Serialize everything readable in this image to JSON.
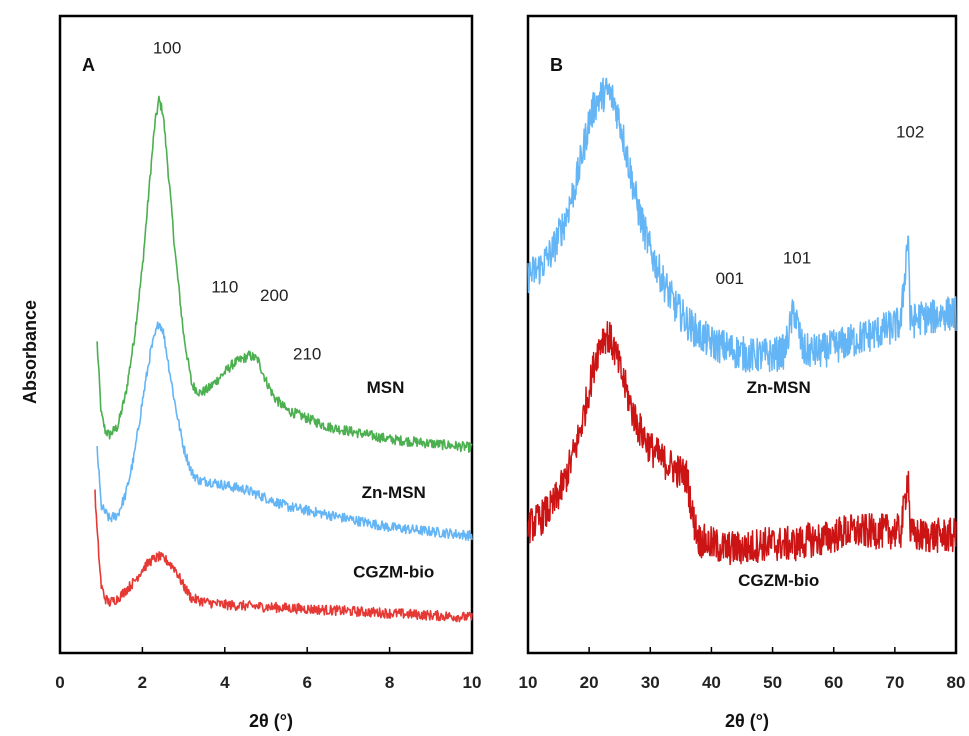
{
  "ylabel": "Absorbance",
  "chart_data": [
    {
      "id": "A",
      "type": "line",
      "panel_label": "A",
      "xlabel": "2θ (°)",
      "ylabel": "Absorbance",
      "xlim": [
        0,
        10
      ],
      "xticks": [
        "0",
        "2",
        "4",
        "6",
        "8",
        "10"
      ],
      "grid": false,
      "series": [
        {
          "name": "MSN",
          "color": "#4caf50",
          "x": [
            0.9,
            1.0,
            1.1,
            1.2,
            1.4,
            1.6,
            1.8,
            2.0,
            2.2,
            2.3,
            2.4,
            2.5,
            2.6,
            2.8,
            3.0,
            3.2,
            3.4,
            3.6,
            3.8,
            4.0,
            4.2,
            4.4,
            4.6,
            4.8,
            5.0,
            5.2,
            5.5,
            6.0,
            6.5,
            7.0,
            8.0,
            9.0,
            10.0
          ],
          "y": [
            7.4,
            5.7,
            5.3,
            5.2,
            5.4,
            6.2,
            7.5,
            9.2,
            11.5,
            12.6,
            13.2,
            12.9,
            11.8,
            9.5,
            7.6,
            6.4,
            6.2,
            6.3,
            6.5,
            6.7,
            6.9,
            7.0,
            7.1,
            7.0,
            6.5,
            6.1,
            5.8,
            5.6,
            5.4,
            5.3,
            5.1,
            5.0,
            4.9
          ]
        },
        {
          "name": "Zn-MSN",
          "color": "#64b5f6",
          "x": [
            0.9,
            1.0,
            1.2,
            1.4,
            1.6,
            1.8,
            2.0,
            2.2,
            2.4,
            2.5,
            2.6,
            2.8,
            3.0,
            3.2,
            3.4,
            3.6,
            4.0,
            4.5,
            5.0,
            5.5,
            6.0,
            7.0,
            8.0,
            9.0,
            10.0
          ],
          "y": [
            4.9,
            3.5,
            3.2,
            3.3,
            3.8,
            4.7,
            6.0,
            7.2,
            7.9,
            7.7,
            7.1,
            5.9,
            4.9,
            4.3,
            4.1,
            4.1,
            4.0,
            3.9,
            3.7,
            3.5,
            3.4,
            3.2,
            3.0,
            2.9,
            2.8
          ]
        },
        {
          "name": "CGZM-bio",
          "color": "#e53935",
          "x": [
            0.85,
            0.9,
            1.0,
            1.1,
            1.2,
            1.4,
            1.6,
            1.8,
            2.0,
            2.2,
            2.4,
            2.6,
            2.8,
            3.0,
            3.2,
            3.6,
            4.0,
            5.0,
            6.0,
            7.0,
            8.0,
            9.0,
            10.0
          ],
          "y": [
            3.8,
            2.9,
            1.6,
            1.3,
            1.2,
            1.3,
            1.5,
            1.7,
            2.0,
            2.2,
            2.3,
            2.2,
            2.0,
            1.6,
            1.3,
            1.2,
            1.15,
            1.1,
            1.05,
            1.0,
            0.95,
            0.9,
            0.85
          ]
        }
      ],
      "peak_labels": [
        {
          "text": "100",
          "x": 2.6,
          "y": 14.3
        },
        {
          "text": "110",
          "x": 4.0,
          "y": 8.6
        },
        {
          "text": "200",
          "x": 5.2,
          "y": 8.4
        },
        {
          "text": "210",
          "x": 6.0,
          "y": 7.0
        }
      ],
      "series_labels": [
        {
          "text": "MSN",
          "x": 7.9,
          "y": 6.2
        },
        {
          "text": "Zn-MSN",
          "x": 8.1,
          "y": 3.7
        },
        {
          "text": "CGZM-bio",
          "x": 8.1,
          "y": 1.8
        }
      ]
    },
    {
      "id": "B",
      "type": "line",
      "panel_label": "B",
      "xlabel": "2θ (°)",
      "xlim": [
        10,
        80
      ],
      "xticks": [
        "10",
        "20",
        "30",
        "40",
        "50",
        "60",
        "70",
        "80"
      ],
      "grid": false,
      "series": [
        {
          "name": "Zn-MSN",
          "color": "#64b5f6",
          "x": [
            10,
            12,
            14,
            16,
            18,
            19,
            20,
            21,
            22,
            23,
            24,
            25,
            26,
            27,
            28,
            30,
            32,
            34,
            36,
            38,
            40,
            42,
            44,
            46,
            48,
            50,
            52,
            53.5,
            55,
            58,
            60,
            62,
            64,
            66,
            68,
            70,
            71,
            72.2,
            72.5,
            72.8,
            74,
            76,
            78,
            80
          ],
          "y": [
            9.0,
            9.2,
            9.6,
            10.3,
            11.3,
            12.0,
            12.7,
            13.1,
            13.3,
            13.4,
            13.2,
            12.7,
            12.0,
            11.3,
            10.6,
            9.6,
            8.9,
            8.3,
            7.9,
            7.6,
            7.4,
            7.3,
            7.2,
            7.1,
            7.1,
            7.1,
            7.2,
            8.2,
            7.2,
            7.2,
            7.3,
            7.4,
            7.5,
            7.6,
            7.7,
            7.8,
            7.9,
            10.1,
            7.9,
            7.9,
            8.0,
            8.0,
            8.1,
            8.1
          ]
        },
        {
          "name": "CGZM-bio",
          "color": "#cc1414",
          "x": [
            10,
            12,
            14,
            16,
            18,
            19,
            20,
            21,
            22,
            23,
            24,
            25,
            26,
            27,
            28,
            30,
            32,
            34,
            36,
            37,
            38,
            40,
            42,
            44,
            46,
            48,
            50,
            52,
            54,
            56,
            58,
            60,
            62,
            64,
            66,
            68,
            70,
            71,
            72.2,
            72.5,
            72.8,
            74,
            76,
            78,
            80
          ],
          "y": [
            3.0,
            3.2,
            3.5,
            4.1,
            5.0,
            5.6,
            6.3,
            7.0,
            7.5,
            7.6,
            7.3,
            6.8,
            6.3,
            5.8,
            5.4,
            4.9,
            4.6,
            4.4,
            4.2,
            3.2,
            2.7,
            2.6,
            2.5,
            2.5,
            2.5,
            2.6,
            2.6,
            2.6,
            2.6,
            2.7,
            2.7,
            2.8,
            2.9,
            2.9,
            2.9,
            2.9,
            2.9,
            2.9,
            4.3,
            2.9,
            2.8,
            2.8,
            2.8,
            2.8,
            2.8
          ]
        }
      ],
      "peak_labels": [
        {
          "text": "001",
          "x": 43,
          "y": 8.8
        },
        {
          "text": "101",
          "x": 54,
          "y": 9.3
        },
        {
          "text": "102",
          "x": 72.5,
          "y": 12.3
        }
      ],
      "series_labels": [
        {
          "text": "Zn-MSN",
          "x": 51,
          "y": 6.2
        },
        {
          "text": "CGZM-bio",
          "x": 51,
          "y": 1.6
        }
      ]
    }
  ]
}
